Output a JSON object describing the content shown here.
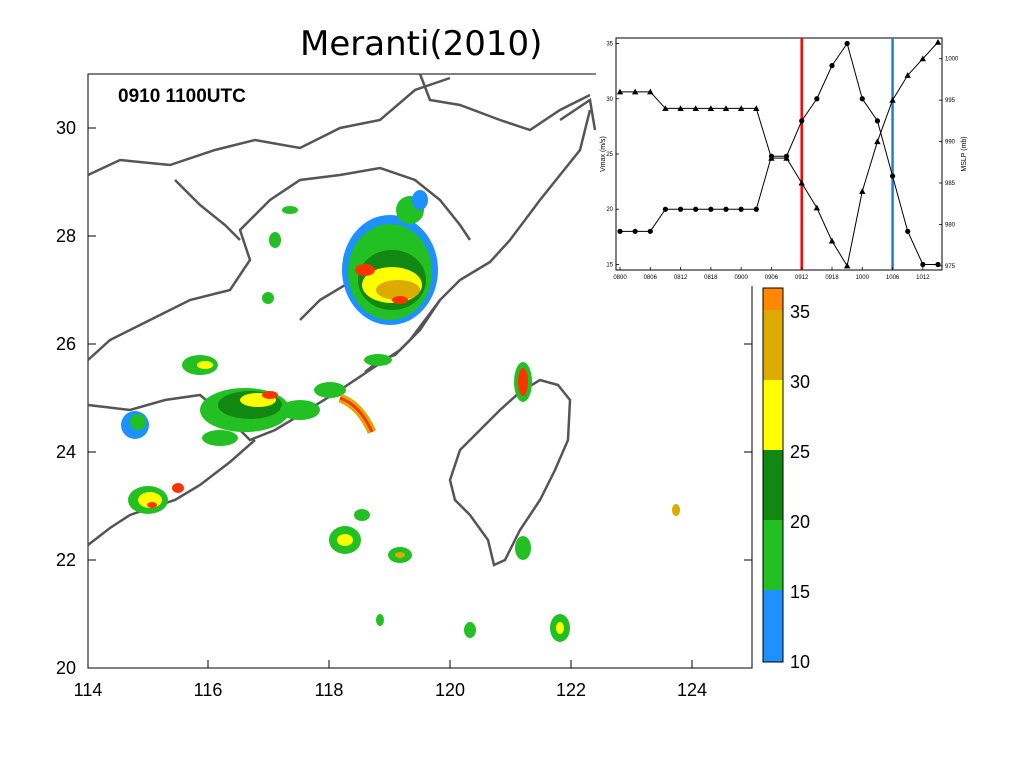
{
  "title": "Meranti(2010)",
  "map": {
    "timestamp": "0910 1100UTC",
    "lon_ticks": [
      "114",
      "116",
      "118",
      "120",
      "122",
      "124"
    ],
    "lat_ticks": [
      "20",
      "22",
      "24",
      "26",
      "28",
      "30"
    ]
  },
  "colorbar": {
    "ticks": [
      "10",
      "15",
      "20",
      "25",
      "30",
      "35"
    ],
    "colors": [
      "#1e90ff",
      "#22c022",
      "#118811",
      "#ffff00",
      "#ddaa00",
      "#ff8800"
    ]
  },
  "chart_data": {
    "type": "line",
    "xlabel": "",
    "x_tick_labels": [
      "0800",
      "0806",
      "0812",
      "0818",
      "0900",
      "0906",
      "0912",
      "0918",
      "1000",
      "1006",
      "1012"
    ],
    "y_left_label": "Vmax (m/s)",
    "y_right_label": "MSLP (mb)",
    "y_left_ticks": [
      "15",
      "20",
      "25",
      "30",
      "35"
    ],
    "y_right_ticks": [
      "975",
      "980",
      "985",
      "990",
      "995",
      "1000"
    ],
    "ylim_left": [
      14.5,
      35.5
    ],
    "ylim_right": [
      974.5,
      1002.5
    ],
    "series": [
      {
        "axis": "left",
        "marker": "circle",
        "x": [
          0,
          1,
          2,
          3,
          4,
          5,
          6,
          7,
          8,
          9,
          10,
          11,
          12,
          13,
          14,
          15,
          16,
          17,
          18,
          19,
          20,
          21
        ],
        "values": [
          18,
          18,
          18,
          20,
          20,
          20,
          20,
          20,
          20,
          20,
          24.8,
          24.8,
          28,
          30,
          33,
          35,
          30,
          28,
          23,
          18,
          15,
          15
        ]
      },
      {
        "axis": "right",
        "marker": "triangle",
        "x": [
          0,
          1,
          2,
          3,
          4,
          5,
          6,
          7,
          8,
          9,
          10,
          11,
          12,
          13,
          14,
          15,
          16,
          17,
          18,
          19,
          20,
          21
        ],
        "values": [
          996,
          996,
          996,
          994,
          994,
          994,
          994,
          994,
          994,
          994,
          988,
          988,
          985,
          982,
          978,
          975,
          984,
          990,
          995,
          998,
          1000,
          1002
        ]
      }
    ],
    "markers": [
      {
        "x": 12,
        "color": "#ff0000"
      },
      {
        "x": 18,
        "color": "#1e7fd8"
      }
    ]
  }
}
